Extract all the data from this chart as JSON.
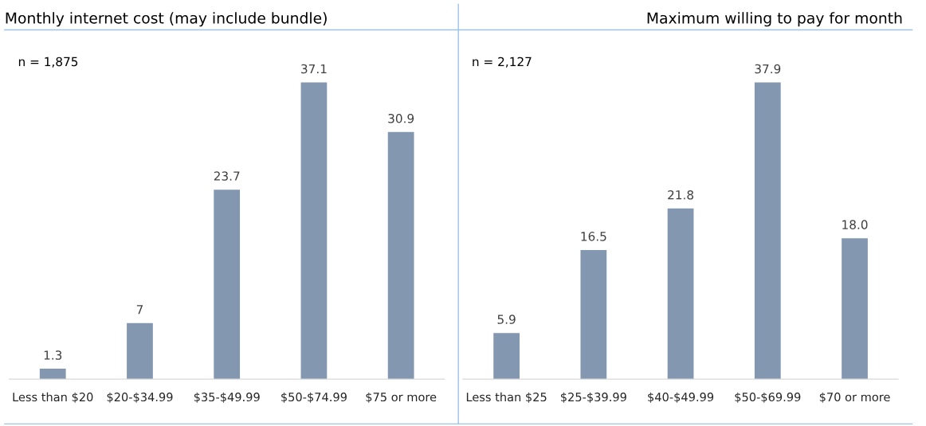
{
  "chart_data": [
    {
      "type": "bar",
      "title": "Monthly internet cost (may include bundle)",
      "categories": [
        "Less than $20",
        "$20-$34.99",
        "$35-$49.99",
        "$50-$74.99",
        "$75 or more"
      ],
      "values": [
        1.3,
        7,
        23.7,
        37.1,
        30.9
      ],
      "color": "#8497b0",
      "data_labels": true,
      "annotations": [
        "n = 1,875"
      ],
      "grid": false,
      "legend": false
    },
    {
      "type": "bar",
      "title": "Maximum willing to pay for month",
      "categories": [
        "Less than $25",
        "$25-$39.99",
        "$40-$49.99",
        "$50-$69.99",
        "$70 or more"
      ],
      "values": [
        5.9,
        16.5,
        21.8,
        37.9,
        18
      ],
      "value_labels": [
        "5.9",
        "16.5",
        "21.8",
        "37.9",
        "18.0"
      ],
      "color": "#8497b0",
      "annotations": [
        "n = 2,127"
      ],
      "grid": false,
      "legend": false
    }
  ]
}
